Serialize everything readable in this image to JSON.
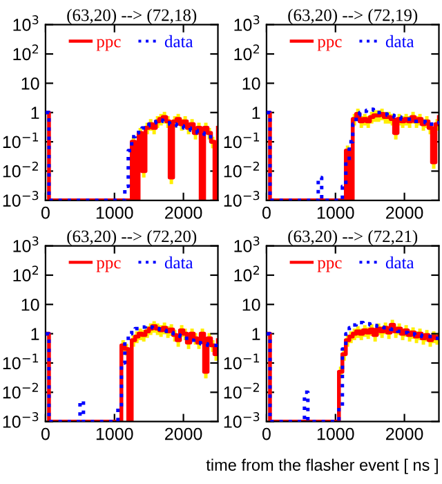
{
  "chart_data": [
    {
      "type": "step",
      "title": "(63,20) --> (72,18)",
      "legend": "top",
      "log": "y",
      "grid": false,
      "x": [
        0,
        50,
        100,
        150,
        200,
        250,
        300,
        350,
        400,
        450,
        500,
        550,
        600,
        650,
        700,
        750,
        800,
        850,
        900,
        950,
        1000,
        1050,
        1100,
        1150,
        1200,
        1250,
        1300,
        1350,
        1400,
        1450,
        1500,
        1550,
        1600,
        1650,
        1700,
        1750,
        1800,
        1850,
        1900,
        1950,
        2000,
        2050,
        2100,
        2150,
        2200,
        2250,
        2300,
        2350,
        2400,
        2450,
        2500
      ],
      "xlim": [
        0,
        2500
      ],
      "xticks": [
        0,
        1000,
        2000
      ],
      "ylim": [
        0.001,
        1000
      ],
      "yticks": [
        {
          "value": 0.001,
          "label": "10$^{−3}$"
        },
        {
          "value": 0.01,
          "label": "10$^{−2}$"
        },
        {
          "value": 0.1,
          "label": "10$^{−1}$"
        },
        1,
        10,
        {
          "value": 100,
          "label": "10$^{2}$"
        },
        {
          "value": 1000,
          "label": "10$^{3}$"
        }
      ],
      "series": [
        {
          "name": "ppc",
          "color": "#ff0000",
          "line_style": "solid",
          "values": [
            1,
            0.001,
            0.001,
            0.001,
            0.001,
            0.001,
            0.001,
            0.001,
            0.001,
            0.001,
            0.001,
            0.001,
            0.001,
            0.001,
            0.001,
            0.001,
            0.001,
            0.001,
            0.001,
            0.001,
            0.001,
            0.001,
            0.001,
            0.001,
            0.001,
            0.1,
            0.001,
            0.2,
            0.01,
            0.3,
            0.4,
            0.3,
            0.5,
            0.6,
            0.7,
            0.5,
            0.006,
            0.5,
            0.6,
            0.4,
            0.5,
            0.3,
            0.4,
            0.2,
            0.3,
            0.001,
            0.3,
            0.2,
            0.1,
            0.001,
            0.3
          ],
          "upper": [
            null,
            null,
            null,
            null,
            null,
            null,
            null,
            null,
            null,
            null,
            null,
            null,
            null,
            null,
            null,
            null,
            null,
            null,
            null,
            null,
            null,
            null,
            null,
            null,
            null,
            0.15,
            null,
            0.3,
            0.015,
            0.45,
            0.6,
            0.45,
            0.75,
            0.9,
            1.05,
            0.75,
            0.009,
            0.75,
            0.9,
            0.6,
            0.75,
            0.45,
            0.6,
            0.3,
            0.45,
            null,
            0.45,
            0.3,
            0.15,
            null,
            null
          ],
          "lower": [
            null,
            null,
            null,
            null,
            null,
            null,
            null,
            null,
            null,
            null,
            null,
            null,
            null,
            null,
            null,
            null,
            null,
            null,
            null,
            null,
            null,
            null,
            null,
            null,
            null,
            0.06,
            null,
            0.12,
            0.006,
            0.18,
            0.24,
            0.18,
            0.3,
            0.36,
            0.42,
            0.3,
            0.0036,
            0.3,
            0.36,
            0.24,
            0.3,
            0.18,
            0.24,
            0.12,
            0.18,
            null,
            0.18,
            0.12,
            0.06,
            null,
            null
          ]
        },
        {
          "name": "data",
          "color": "#0000ff",
          "line_style": "dotted",
          "values": [
            1,
            0.001,
            0.001,
            0.001,
            0.001,
            0.001,
            0.001,
            0.001,
            0.001,
            0.001,
            0.001,
            0.001,
            0.001,
            0.001,
            0.001,
            0.001,
            0.001,
            0.001,
            0.001,
            0.001,
            0.001,
            0.001,
            0.001,
            0.003,
            0.05,
            0.15,
            0.2,
            0.25,
            0.3,
            0.35,
            0.4,
            0.45,
            0.5,
            0.55,
            0.5,
            0.45,
            0.4,
            0.4,
            0.35,
            0.35,
            0.3,
            0.3,
            0.25,
            0.25,
            0.2,
            0.2,
            0.18,
            0.15,
            0.15,
            0.15,
            0.15
          ]
        }
      ]
    },
    {
      "type": "step",
      "title": "(63,20) --> (72,19)",
      "legend": "top",
      "log": "y",
      "grid": false,
      "x": [
        0,
        50,
        100,
        150,
        200,
        250,
        300,
        350,
        400,
        450,
        500,
        550,
        600,
        650,
        700,
        750,
        800,
        850,
        900,
        950,
        1000,
        1050,
        1100,
        1150,
        1200,
        1250,
        1300,
        1350,
        1400,
        1450,
        1500,
        1550,
        1600,
        1650,
        1700,
        1750,
        1800,
        1850,
        1900,
        1950,
        2000,
        2050,
        2100,
        2150,
        2200,
        2250,
        2300,
        2350,
        2400,
        2450,
        2500
      ],
      "xlim": [
        0,
        2500
      ],
      "xticks": [
        0,
        1000,
        2000
      ],
      "ylim": [
        0.001,
        1000
      ],
      "yticks": [
        {
          "value": 0.001,
          "label": "10$^{−3}$"
        },
        {
          "value": 0.01,
          "label": "10$^{−2}$"
        },
        {
          "value": 0.1,
          "label": "10$^{−1}$"
        },
        1,
        10,
        {
          "value": 100,
          "label": "10$^{2}$"
        },
        {
          "value": 1000,
          "label": "10$^{3}$"
        }
      ],
      "series": [
        {
          "name": "ppc",
          "color": "#ff0000",
          "line_style": "solid",
          "values": [
            1,
            0.001,
            0.001,
            0.001,
            0.001,
            0.001,
            0.001,
            0.001,
            0.001,
            0.001,
            0.001,
            0.001,
            0.001,
            0.001,
            0.001,
            0.001,
            0.001,
            0.001,
            0.001,
            0.001,
            0.001,
            0.001,
            0.001,
            0.05,
            0.001,
            0.6,
            0.9,
            0.5,
            0.6,
            0.5,
            0.7,
            0.8,
            0.8,
            0.9,
            0.7,
            0.7,
            0.6,
            0.2,
            0.6,
            0.5,
            0.6,
            0.5,
            0.7,
            0.5,
            0.6,
            0.4,
            0.5,
            0.3,
            0.02,
            0.4,
            0.7
          ],
          "upper": [
            null,
            null,
            null,
            null,
            null,
            null,
            null,
            null,
            null,
            null,
            null,
            null,
            null,
            null,
            null,
            null,
            null,
            null,
            null,
            null,
            null,
            null,
            null,
            0.075,
            null,
            0.9,
            1.35,
            0.75,
            0.9,
            0.75,
            1.05,
            1.2,
            1.2,
            1.35,
            1.05,
            1.05,
            0.9,
            0.3,
            0.9,
            0.75,
            0.9,
            0.75,
            1.05,
            0.75,
            0.9,
            0.6,
            0.75,
            0.45,
            0.03,
            0.6,
            1.05
          ],
          "lower": [
            null,
            null,
            null,
            null,
            null,
            null,
            null,
            null,
            null,
            null,
            null,
            null,
            null,
            null,
            null,
            null,
            null,
            null,
            null,
            null,
            null,
            null,
            null,
            0.03,
            null,
            0.36,
            0.54,
            0.3,
            0.36,
            0.3,
            0.42,
            0.48,
            0.48,
            0.54,
            0.42,
            0.42,
            0.36,
            0.12,
            0.36,
            0.3,
            0.36,
            0.3,
            0.42,
            0.3,
            0.36,
            0.24,
            0.3,
            0.18,
            0.012,
            0.24,
            0.42
          ]
        },
        {
          "name": "data",
          "color": "#0000ff",
          "line_style": "dotted",
          "values": [
            1,
            0.001,
            0.001,
            0.001,
            0.001,
            0.001,
            0.001,
            0.001,
            0.001,
            0.001,
            0.001,
            0.001,
            0.001,
            0.001,
            0.001,
            0.006,
            0.001,
            0.001,
            0.001,
            0.001,
            0.001,
            0.001,
            0.003,
            0.02,
            0.1,
            0.4,
            0.8,
            1.0,
            1.1,
            1.2,
            1.3,
            1.2,
            1.0,
            1.0,
            0.9,
            0.8,
            0.8,
            0.7,
            0.7,
            0.6,
            0.6,
            0.6,
            0.5,
            0.5,
            0.5,
            0.5,
            0.45,
            0.4,
            0.4,
            0.45,
            0.5
          ]
        }
      ]
    },
    {
      "type": "step",
      "title": "(63,20) --> (72,20)",
      "legend": "top",
      "log": "y",
      "grid": false,
      "x": [
        0,
        50,
        100,
        150,
        200,
        250,
        300,
        350,
        400,
        450,
        500,
        550,
        600,
        650,
        700,
        750,
        800,
        850,
        900,
        950,
        1000,
        1050,
        1100,
        1150,
        1200,
        1250,
        1300,
        1350,
        1400,
        1450,
        1500,
        1550,
        1600,
        1650,
        1700,
        1750,
        1800,
        1850,
        1900,
        1950,
        2000,
        2050,
        2100,
        2150,
        2200,
        2250,
        2300,
        2350,
        2400,
        2450,
        2500
      ],
      "xlim": [
        0,
        2500
      ],
      "xticks": [
        0,
        1000,
        2000
      ],
      "ylim": [
        0.001,
        1000
      ],
      "yticks": [
        {
          "value": 0.001,
          "label": "10$^{−3}$"
        },
        {
          "value": 0.01,
          "label": "10$^{−2}$"
        },
        {
          "value": 0.1,
          "label": "10$^{−1}$"
        },
        1,
        10,
        {
          "value": 100,
          "label": "10$^{2}$"
        },
        {
          "value": 1000,
          "label": "10$^{3}$"
        }
      ],
      "series": [
        {
          "name": "ppc",
          "color": "#ff0000",
          "line_style": "solid",
          "values": [
            1,
            0.001,
            0.001,
            0.001,
            0.001,
            0.001,
            0.001,
            0.001,
            0.001,
            0.001,
            0.001,
            0.001,
            0.001,
            0.001,
            0.001,
            0.001,
            0.001,
            0.001,
            0.001,
            0.001,
            0.001,
            0.001,
            0.4,
            0.3,
            0.001,
            0.6,
            0.8,
            1.0,
            0.9,
            1.2,
            1.5,
            1.8,
            1.5,
            1.3,
            1.6,
            1.2,
            1.4,
            0.9,
            0.6,
            1.3,
            1.0,
            0.5,
            1.0,
            0.7,
            0.5,
            1.0,
            0.05,
            0.7,
            0.4,
            0.2,
            0.6
          ],
          "upper": [
            null,
            null,
            null,
            null,
            null,
            null,
            null,
            null,
            null,
            null,
            null,
            null,
            null,
            null,
            null,
            null,
            null,
            null,
            null,
            null,
            null,
            null,
            0.6,
            0.45,
            null,
            0.9,
            1.2,
            1.5,
            1.35,
            1.8,
            2.25,
            2.7,
            2.25,
            1.95,
            2.4,
            1.8,
            2.1,
            1.35,
            0.9,
            1.95,
            1.5,
            0.75,
            1.5,
            1.05,
            0.75,
            1.5,
            0.075,
            1.05,
            0.6,
            0.3,
            0.9
          ],
          "lower": [
            null,
            null,
            null,
            null,
            null,
            null,
            null,
            null,
            null,
            null,
            null,
            null,
            null,
            null,
            null,
            null,
            null,
            null,
            null,
            null,
            null,
            null,
            0.24,
            0.18,
            null,
            0.36,
            0.48,
            0.6,
            0.54,
            0.72,
            0.9,
            1.08,
            0.9,
            0.78,
            0.96,
            0.72,
            0.84,
            0.54,
            0.36,
            0.78,
            0.6,
            0.3,
            0.6,
            0.42,
            0.3,
            0.6,
            0.03,
            0.42,
            0.24,
            0.12,
            0.36
          ]
        },
        {
          "name": "data",
          "color": "#0000ff",
          "line_style": "dotted",
          "values": [
            1,
            0.001,
            0.001,
            0.001,
            0.001,
            0.001,
            0.001,
            0.001,
            0.001,
            0.001,
            0.005,
            0.001,
            0.001,
            0.001,
            0.001,
            0.001,
            0.001,
            0.001,
            0.001,
            0.001,
            0.001,
            0.003,
            0.1,
            0.6,
            1.0,
            1.3,
            1.5,
            1.6,
            1.7,
            1.8,
            1.7,
            1.6,
            1.5,
            1.4,
            1.3,
            1.2,
            1.1,
            1.0,
            0.9,
            0.8,
            0.7,
            0.7,
            0.6,
            0.5,
            0.5,
            0.45,
            0.45,
            0.4,
            0.4,
            0.4,
            0.4
          ]
        }
      ]
    },
    {
      "type": "step",
      "title": "(63,20) --> (72,21)",
      "xlabel": "time from the flasher event [ ns ]",
      "legend": "top",
      "log": "y",
      "grid": false,
      "x": [
        0,
        50,
        100,
        150,
        200,
        250,
        300,
        350,
        400,
        450,
        500,
        550,
        600,
        650,
        700,
        750,
        800,
        850,
        900,
        950,
        1000,
        1050,
        1100,
        1150,
        1200,
        1250,
        1300,
        1350,
        1400,
        1450,
        1500,
        1550,
        1600,
        1650,
        1700,
        1750,
        1800,
        1850,
        1900,
        1950,
        2000,
        2050,
        2100,
        2150,
        2200,
        2250,
        2300,
        2350,
        2400,
        2450,
        2500
      ],
      "xlim": [
        0,
        2500
      ],
      "xticks": [
        0,
        1000,
        2000
      ],
      "ylim": [
        0.001,
        1000
      ],
      "yticks": [
        {
          "value": 0.001,
          "label": "10$^{−3}$"
        },
        {
          "value": 0.01,
          "label": "10$^{−2}$"
        },
        {
          "value": 0.1,
          "label": "10$^{−1}$"
        },
        1,
        10,
        {
          "value": 100,
          "label": "10$^{2}$"
        },
        {
          "value": 1000,
          "label": "10$^{3}$"
        }
      ],
      "series": [
        {
          "name": "ppc",
          "color": "#ff0000",
          "line_style": "solid",
          "values": [
            1,
            0.001,
            0.001,
            0.001,
            0.001,
            0.001,
            0.001,
            0.001,
            0.001,
            0.001,
            0.001,
            0.001,
            0.001,
            0.001,
            0.001,
            0.001,
            0.001,
            0.001,
            0.001,
            0.001,
            0.001,
            0.05,
            0.2,
            0.6,
            0.8,
            1.0,
            1.2,
            1.0,
            1.3,
            1.1,
            1.4,
            0.9,
            1.5,
            1.2,
            1.6,
            1.1,
            2.0,
            1.2,
            1.5,
            1.0,
            1.3,
            0.9,
            1.1,
            0.8,
            1.0,
            0.7,
            0.9,
            0.6,
            0.8,
            0.7,
            0.8
          ],
          "upper": [
            null,
            null,
            null,
            null,
            null,
            null,
            null,
            null,
            null,
            null,
            null,
            null,
            null,
            null,
            null,
            null,
            null,
            null,
            null,
            null,
            null,
            0.075,
            0.3,
            0.9,
            1.2,
            1.5,
            1.8,
            1.5,
            1.95,
            1.65,
            2.1,
            1.35,
            2.25,
            1.8,
            2.4,
            1.65,
            3.0,
            1.8,
            2.25,
            1.5,
            1.95,
            1.35,
            1.65,
            1.2,
            1.5,
            1.05,
            1.35,
            0.9,
            1.2,
            1.05,
            1.2
          ],
          "lower": [
            null,
            null,
            null,
            null,
            null,
            null,
            null,
            null,
            null,
            null,
            null,
            null,
            null,
            null,
            null,
            null,
            null,
            null,
            null,
            null,
            null,
            0.03,
            0.12,
            0.36,
            0.48,
            0.6,
            0.72,
            0.6,
            0.78,
            0.66,
            0.84,
            0.54,
            0.9,
            0.72,
            0.96,
            0.66,
            1.2,
            0.72,
            0.9,
            0.6,
            0.78,
            0.54,
            0.66,
            0.48,
            0.6,
            0.42,
            0.54,
            0.36,
            0.48,
            0.42,
            0.48
          ]
        },
        {
          "name": "data",
          "color": "#0000ff",
          "line_style": "dotted",
          "values": [
            1,
            0.001,
            0.001,
            0.001,
            0.001,
            0.001,
            0.001,
            0.001,
            0.001,
            0.001,
            0.001,
            0.01,
            0.001,
            0.001,
            0.001,
            0.001,
            0.001,
            0.001,
            0.001,
            0.001,
            0.001,
            0.003,
            0.3,
            1.0,
            1.6,
            2.0,
            2.2,
            2.4,
            2.3,
            2.2,
            2.0,
            1.9,
            1.8,
            1.7,
            1.6,
            1.5,
            1.4,
            1.3,
            1.2,
            1.2,
            1.1,
            1.0,
            1.0,
            0.9,
            0.9,
            0.8,
            0.8,
            0.8,
            0.7,
            0.7,
            0.7
          ]
        }
      ]
    }
  ]
}
